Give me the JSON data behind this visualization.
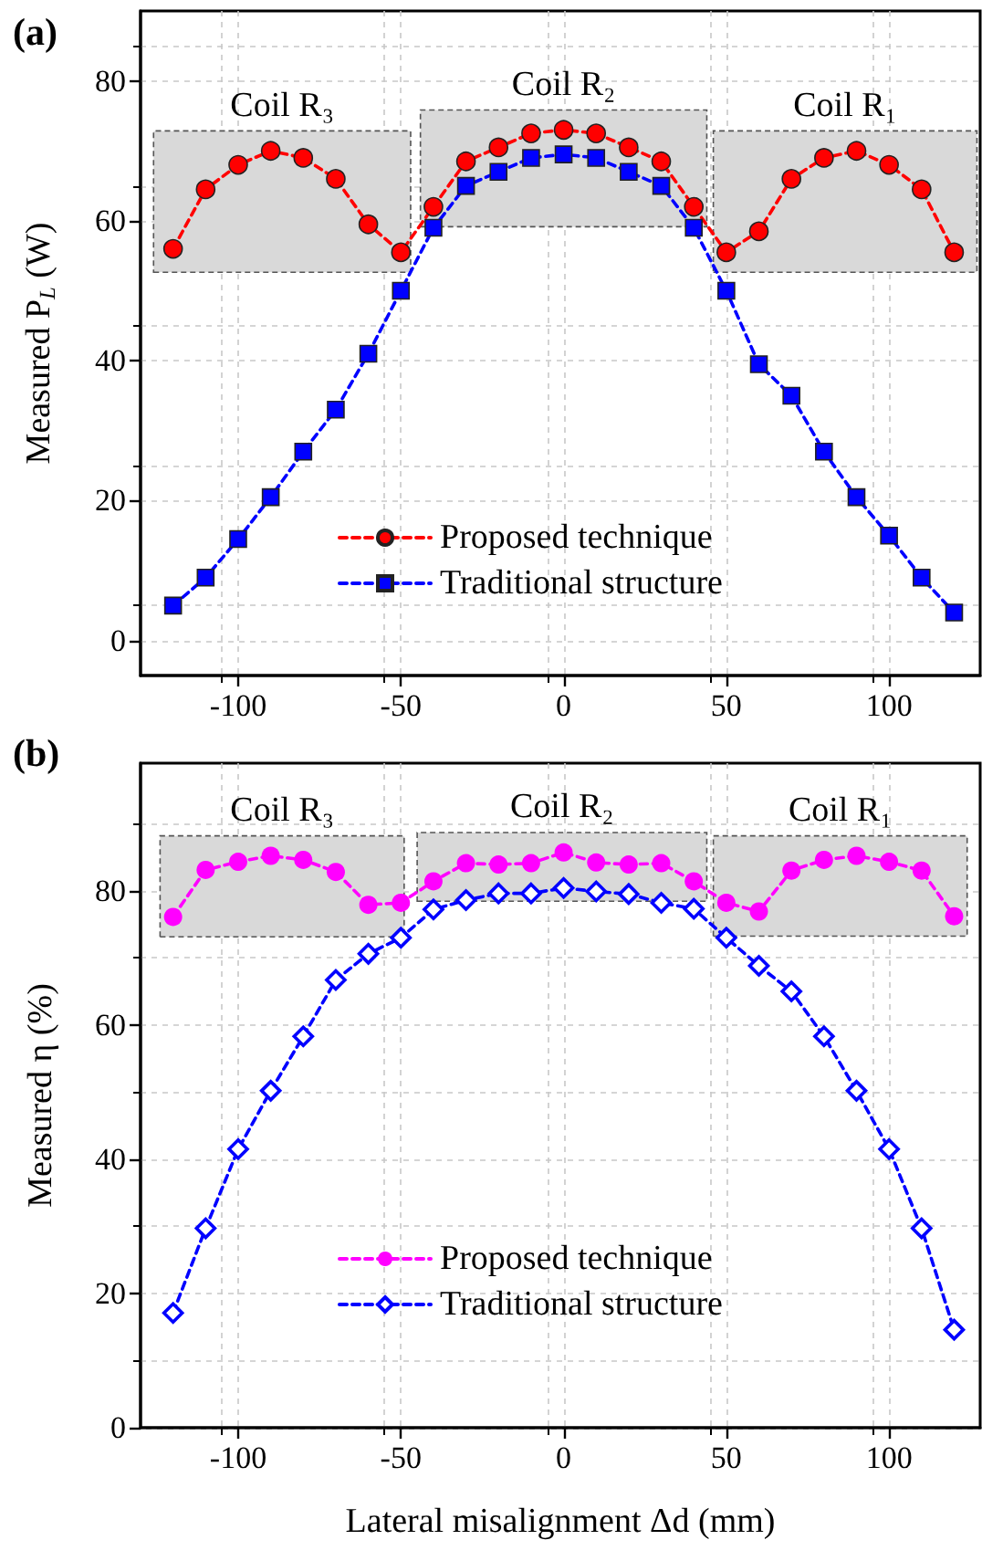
{
  "chart_data": [
    {
      "type": "line",
      "title": "(a)",
      "ylabel": "Measured P$_{L}$ (W)",
      "x": [
        -120,
        -110,
        -100,
        -90,
        -80,
        -70,
        -60,
        -50,
        -40,
        -30,
        -20,
        -10,
        0,
        10,
        20,
        30,
        40,
        50,
        60,
        70,
        80,
        90,
        100,
        110,
        120
      ],
      "xlim": [
        -130,
        128
      ],
      "xticks": [
        -100,
        -50,
        0,
        50,
        100
      ],
      "ylim": [
        -5,
        90
      ],
      "yticks": [
        0,
        20,
        40,
        60,
        80
      ],
      "grid": true,
      "legend": "bottom",
      "line_style": "dashed",
      "series": [
        {
          "name": "Proposed technique",
          "color": "#ff0000",
          "marker": "circle",
          "values": [
            56,
            64.5,
            68,
            70,
            69,
            66,
            59.5,
            55.5,
            62,
            68.5,
            70.5,
            72.5,
            73,
            72.5,
            70.5,
            68.5,
            62,
            55.5,
            58.5,
            66,
            69,
            70,
            68,
            64.5,
            55.5
          ]
        },
        {
          "name": "Traditional structure",
          "color": "#0000ff",
          "marker": "square",
          "values": [
            5,
            9,
            14.5,
            20.5,
            27,
            33,
            41,
            50,
            59,
            65,
            67,
            69,
            69.5,
            69,
            67,
            65,
            59,
            50,
            39.5,
            35,
            27,
            20.5,
            15,
            9,
            4
          ]
        }
      ],
      "bands": [
        {
          "axis": "x",
          "from": -126,
          "to": -47,
          "label": "Coil R₃",
          "color": "#d9d9d9"
        },
        {
          "axis": "x",
          "from": -44,
          "to": 44,
          "label": "Coil R₂",
          "color": "#d9d9d9"
        },
        {
          "axis": "x",
          "from": 46,
          "to": 127,
          "label": "Coil R₁",
          "color": "#d9d9d9"
        }
      ]
    },
    {
      "type": "line",
      "title": "(b)",
      "xlabel": "Lateral misalignment Δd (mm)",
      "ylabel": "Measured η (%)",
      "x": [
        -120,
        -110,
        -100,
        -90,
        -80,
        -70,
        -60,
        -50,
        -40,
        -30,
        -20,
        -10,
        0,
        10,
        20,
        30,
        40,
        50,
        60,
        70,
        80,
        90,
        100,
        110,
        120
      ],
      "xlim": [
        -130,
        128
      ],
      "xticks": [
        -100,
        -50,
        0,
        50,
        100
      ],
      "ylim": [
        0,
        99
      ],
      "yticks": [
        0,
        20,
        40,
        60,
        80
      ],
      "grid": true,
      "legend": "bottom",
      "line_style": "dashed",
      "series": [
        {
          "name": "Proposed technique",
          "color": "#ff00ff",
          "marker": "circle",
          "values": [
            76.1,
            83.1,
            84.3,
            85.2,
            84.6,
            82.8,
            77.9,
            78.2,
            81.4,
            84.1,
            83.9,
            84.1,
            85.7,
            84.2,
            83.9,
            84.1,
            81.4,
            78.2,
            76.9,
            83,
            84.6,
            85.2,
            84.3,
            83,
            76.2
          ]
        },
        {
          "name": "Traditional structure",
          "color": "#0000ff",
          "marker": "diamond",
          "values": [
            17.1,
            29.7,
            41.5,
            50.2,
            58.3,
            66.7,
            70.6,
            73,
            77.2,
            78.6,
            79.6,
            79.6,
            80.4,
            79.9,
            79.5,
            78.2,
            77.3,
            73,
            68.8,
            65,
            58.3,
            50.2,
            41.5,
            29.7,
            14.6
          ]
        }
      ],
      "bands": [
        {
          "axis": "x",
          "from": -124,
          "to": -49,
          "label": "Coil R₃",
          "color": "#d9d9d9"
        },
        {
          "axis": "x",
          "from": -45,
          "to": 44,
          "label": "Coil R₂",
          "color": "#d9d9d9"
        },
        {
          "axis": "x",
          "from": 46,
          "to": 124,
          "label": "Coil R₁",
          "color": "#d9d9d9"
        }
      ]
    }
  ]
}
